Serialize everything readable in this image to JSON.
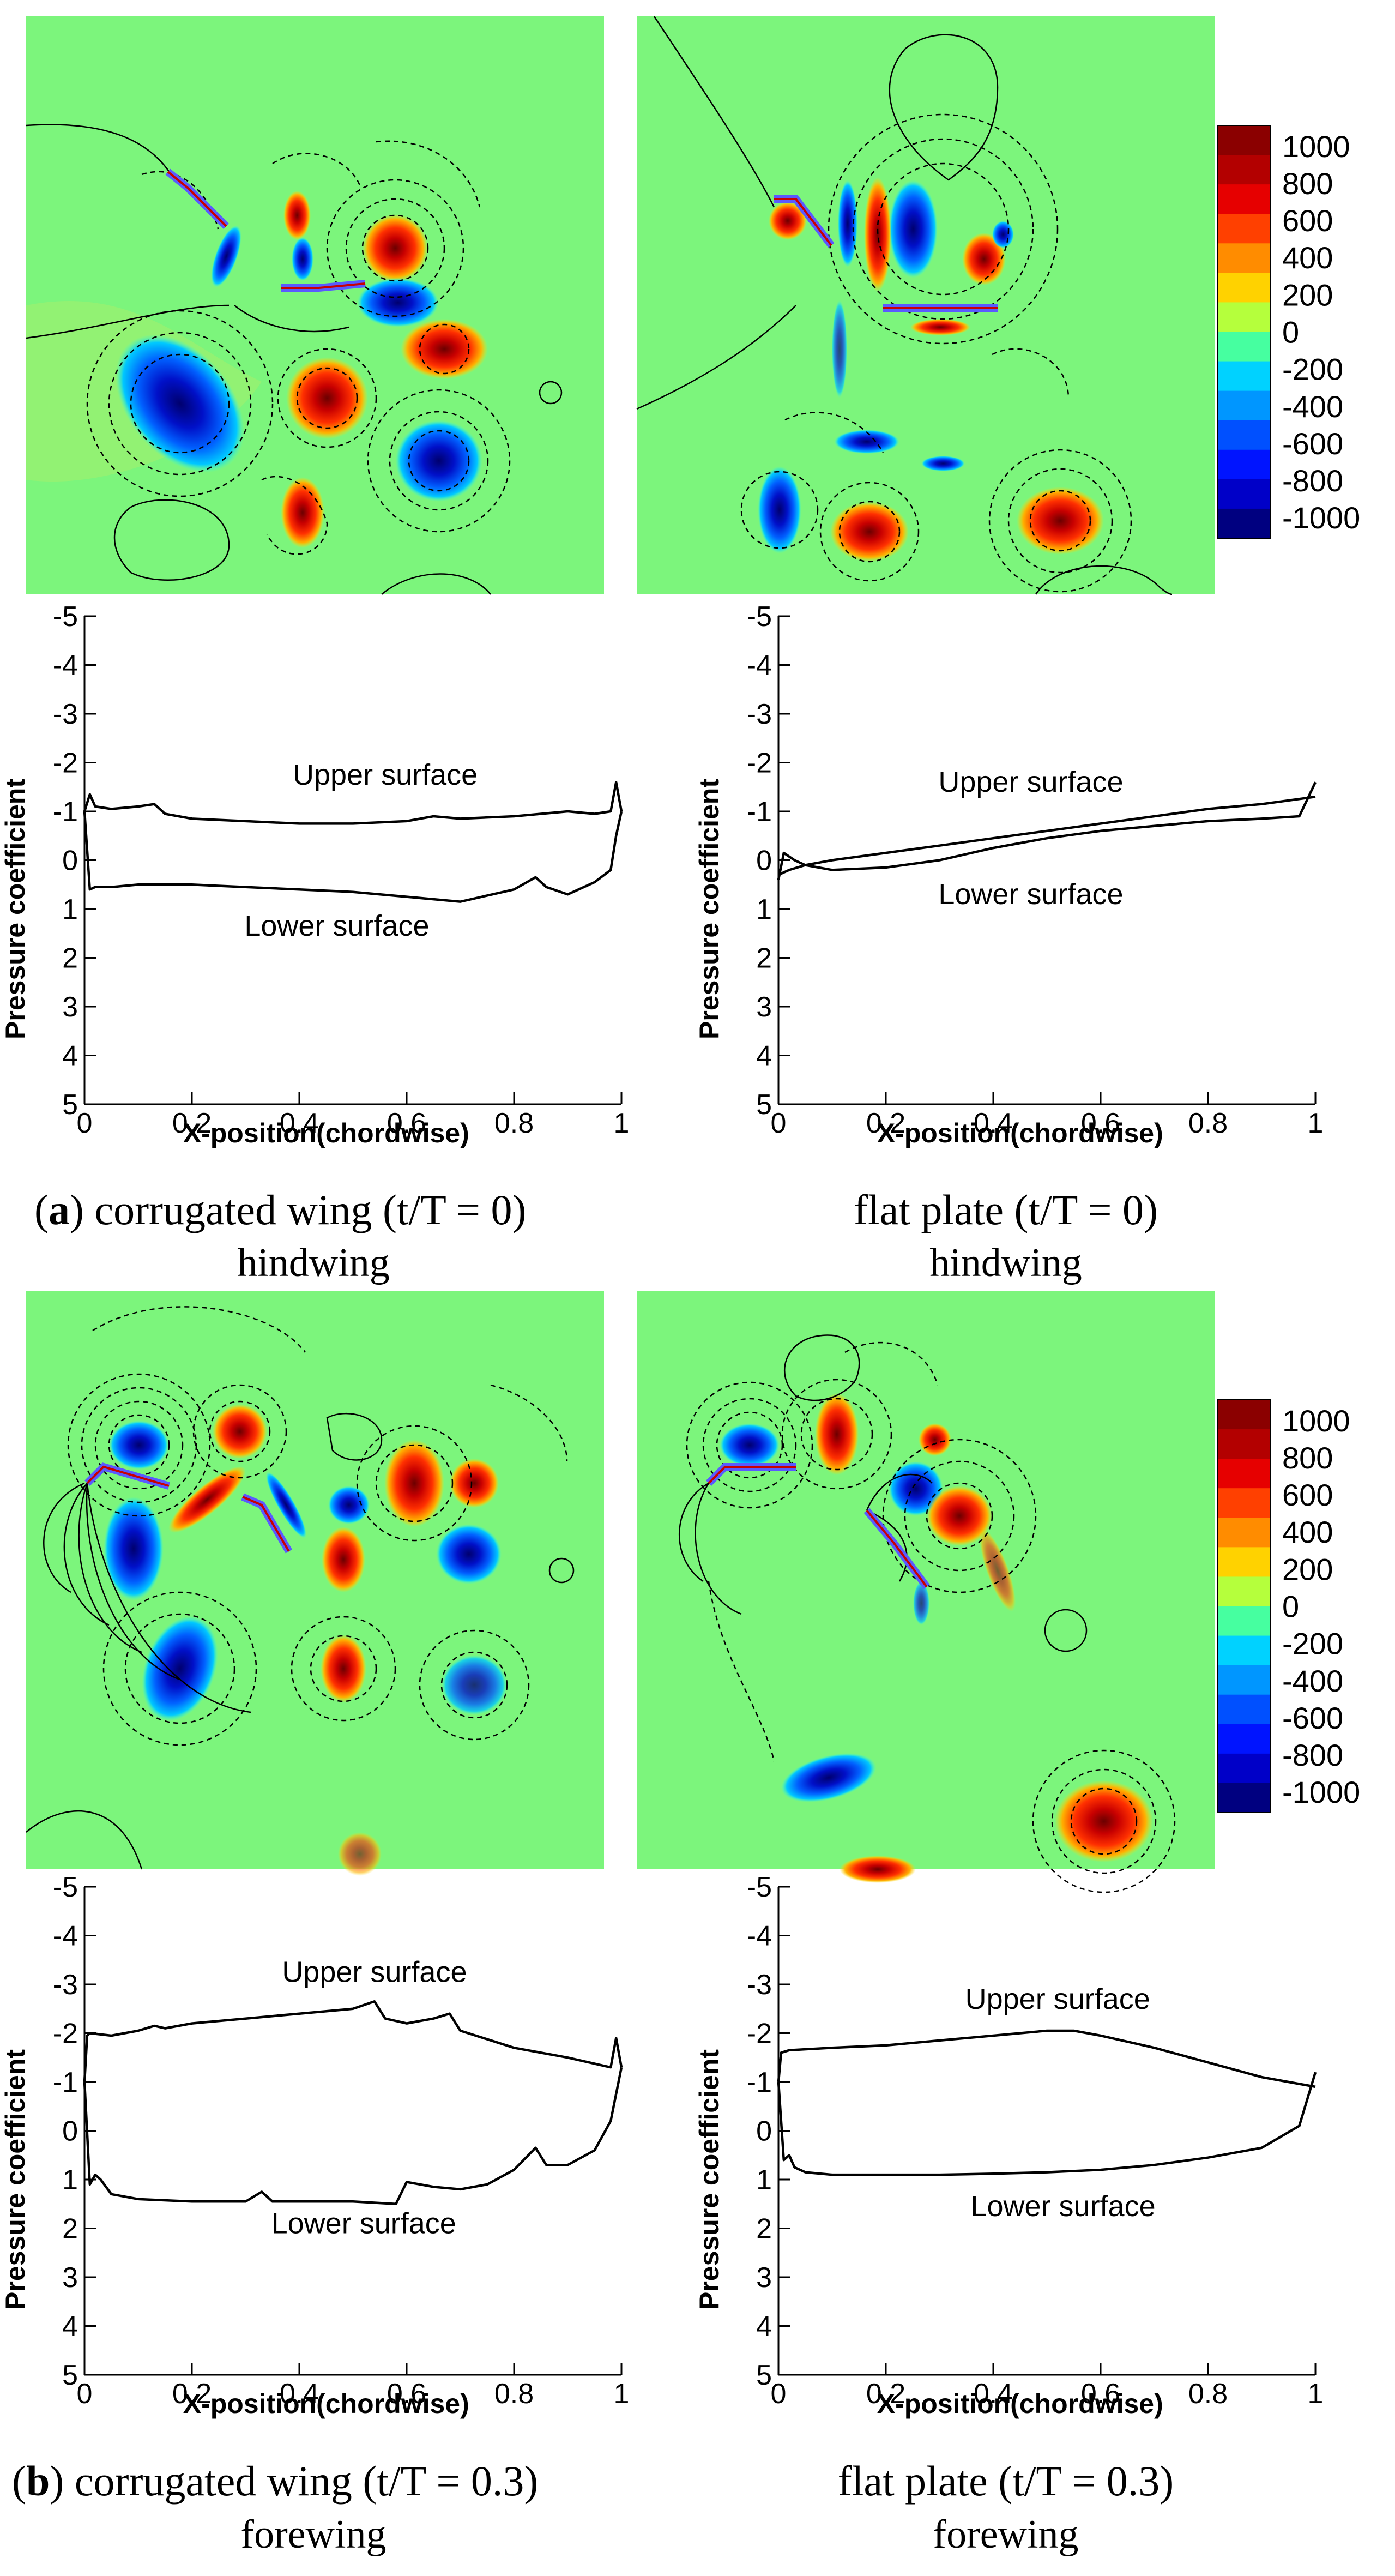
{
  "colorbar": {
    "labels": [
      "1000",
      "800",
      "600",
      "400",
      "200",
      "0",
      "-200",
      "-400",
      "-600",
      "-800",
      "-1000"
    ],
    "colors": [
      "#8b0000",
      "#b30000",
      "#e60000",
      "#ff4000",
      "#ff8c00",
      "#ffd200",
      "#b5ff3c",
      "#46ffa0",
      "#00d2ff",
      "#0096ff",
      "#0050ff",
      "#0014ff",
      "#0000c8",
      "#000080"
    ]
  },
  "field_colors": {
    "background": "#7cf57c",
    "positive": "#e60000",
    "negative": "#0014c8",
    "wing": "#5a5aff"
  },
  "chart_data": [
    {
      "type": "line",
      "panel": "a-left",
      "xlabel": "X-position(chordwise)",
      "ylabel": "Pressure coefficient",
      "xlim": [
        0,
        1
      ],
      "ylim": [
        5,
        -5
      ],
      "xticks": [
        "0",
        "0.2",
        "0.4",
        "0.6",
        "0.8",
        "1"
      ],
      "yticks": [
        "-5",
        "-4",
        "-3",
        "-2",
        "-1",
        "0",
        "1",
        "2",
        "3",
        "4",
        "5"
      ],
      "series": [
        {
          "name": "Upper surface",
          "x": [
            0,
            0.01,
            0.02,
            0.05,
            0.1,
            0.13,
            0.15,
            0.2,
            0.3,
            0.4,
            0.5,
            0.6,
            0.65,
            0.7,
            0.8,
            0.9,
            0.95,
            0.98,
            0.99,
            1.0
          ],
          "y": [
            -1.0,
            -1.35,
            -1.1,
            -1.05,
            -1.1,
            -1.15,
            -0.95,
            -0.85,
            -0.8,
            -0.75,
            -0.75,
            -0.8,
            -0.9,
            -0.85,
            -0.9,
            -1.0,
            -0.95,
            -1.0,
            -1.6,
            -1.0
          ]
        },
        {
          "name": "Lower surface",
          "x": [
            0,
            0.01,
            0.02,
            0.05,
            0.1,
            0.2,
            0.3,
            0.4,
            0.5,
            0.6,
            0.7,
            0.8,
            0.84,
            0.86,
            0.9,
            0.95,
            0.98,
            0.99,
            1.0
          ],
          "y": [
            -1.0,
            0.6,
            0.55,
            0.55,
            0.5,
            0.5,
            0.55,
            0.6,
            0.65,
            0.75,
            0.85,
            0.6,
            0.35,
            0.55,
            0.7,
            0.45,
            0.2,
            -0.5,
            -1.0
          ]
        }
      ],
      "annotations": [
        "Upper surface",
        "Lower surface"
      ]
    },
    {
      "type": "line",
      "panel": "a-right",
      "xlabel": "X-position(chordwise)",
      "ylabel": "Pressure coefficient",
      "xlim": [
        0,
        1
      ],
      "ylim": [
        5,
        -5
      ],
      "xticks": [
        "0",
        "0.2",
        "0.4",
        "0.6",
        "0.8",
        "1"
      ],
      "yticks": [
        "-5",
        "-4",
        "-3",
        "-2",
        "-1",
        "0",
        "1",
        "2",
        "3",
        "4",
        "5"
      ],
      "series": [
        {
          "name": "Upper surface",
          "x": [
            0,
            0.02,
            0.05,
            0.1,
            0.2,
            0.3,
            0.4,
            0.5,
            0.6,
            0.7,
            0.8,
            0.9,
            1.0
          ],
          "y": [
            0.3,
            0.2,
            0.1,
            0.0,
            -0.15,
            -0.3,
            -0.45,
            -0.6,
            -0.75,
            -0.9,
            -1.05,
            -1.15,
            -1.3
          ]
        },
        {
          "name": "Lower surface",
          "x": [
            0,
            0.01,
            0.03,
            0.05,
            0.1,
            0.2,
            0.3,
            0.4,
            0.5,
            0.6,
            0.7,
            0.8,
            0.9,
            0.97,
            1.0
          ],
          "y": [
            0.4,
            -0.15,
            0.0,
            0.1,
            0.2,
            0.15,
            0.0,
            -0.25,
            -0.45,
            -0.6,
            -0.7,
            -0.8,
            -0.85,
            -0.9,
            -1.6
          ]
        }
      ],
      "annotations": [
        "Upper surface",
        "Lower surface"
      ]
    },
    {
      "type": "line",
      "panel": "b-left",
      "xlabel": "X-position(chordwise)",
      "ylabel": "Pressure coefficient",
      "xlim": [
        0,
        1
      ],
      "ylim": [
        5,
        -5
      ],
      "xticks": [
        "0",
        "0.2",
        "0.4",
        "0.6",
        "0.8",
        "1"
      ],
      "yticks": [
        "-5",
        "-4",
        "-3",
        "-2",
        "-1",
        "0",
        "1",
        "2",
        "3",
        "4",
        "5"
      ],
      "series": [
        {
          "name": "Upper surface",
          "x": [
            0,
            0.005,
            0.01,
            0.05,
            0.1,
            0.13,
            0.15,
            0.2,
            0.3,
            0.4,
            0.5,
            0.54,
            0.56,
            0.6,
            0.65,
            0.68,
            0.7,
            0.8,
            0.9,
            0.98,
            0.99,
            1.0
          ],
          "y": [
            -1.0,
            -1.95,
            -2.0,
            -1.95,
            -2.05,
            -2.15,
            -2.1,
            -2.2,
            -2.3,
            -2.4,
            -2.5,
            -2.65,
            -2.3,
            -2.2,
            -2.3,
            -2.4,
            -2.05,
            -1.7,
            -1.5,
            -1.3,
            -1.9,
            -1.3
          ]
        },
        {
          "name": "Lower surface",
          "x": [
            0,
            0.01,
            0.02,
            0.03,
            0.05,
            0.1,
            0.2,
            0.3,
            0.33,
            0.35,
            0.4,
            0.5,
            0.58,
            0.6,
            0.65,
            0.7,
            0.75,
            0.8,
            0.84,
            0.86,
            0.9,
            0.95,
            0.98,
            1.0
          ],
          "y": [
            -1.0,
            1.1,
            0.9,
            1.0,
            1.3,
            1.4,
            1.45,
            1.45,
            1.25,
            1.45,
            1.45,
            1.45,
            1.5,
            1.05,
            1.15,
            1.2,
            1.1,
            0.8,
            0.35,
            0.7,
            0.7,
            0.4,
            -0.2,
            -1.3
          ]
        }
      ],
      "annotations": [
        "Upper surface",
        "Lower surface"
      ]
    },
    {
      "type": "line",
      "panel": "b-right",
      "xlabel": "X-position(chordwise)",
      "ylabel": "Pressure coefficient",
      "xlim": [
        0,
        1
      ],
      "ylim": [
        5,
        -5
      ],
      "xticks": [
        "0",
        "0.2",
        "0.4",
        "0.6",
        "0.8",
        "1"
      ],
      "yticks": [
        "-5",
        "-4",
        "-3",
        "-2",
        "-1",
        "0",
        "1",
        "2",
        "3",
        "4",
        "5"
      ],
      "series": [
        {
          "name": "Upper surface",
          "x": [
            0,
            0.005,
            0.02,
            0.1,
            0.2,
            0.3,
            0.4,
            0.5,
            0.55,
            0.6,
            0.7,
            0.8,
            0.9,
            1.0
          ],
          "y": [
            -1.0,
            -1.6,
            -1.65,
            -1.7,
            -1.75,
            -1.85,
            -1.95,
            -2.05,
            -2.05,
            -1.95,
            -1.7,
            -1.4,
            -1.1,
            -0.9
          ]
        },
        {
          "name": "Lower surface",
          "x": [
            0,
            0.01,
            0.02,
            0.03,
            0.05,
            0.1,
            0.2,
            0.3,
            0.4,
            0.5,
            0.6,
            0.7,
            0.8,
            0.9,
            0.97,
            1.0
          ],
          "y": [
            -1.0,
            0.6,
            0.5,
            0.75,
            0.85,
            0.9,
            0.9,
            0.9,
            0.88,
            0.85,
            0.8,
            0.7,
            0.55,
            0.35,
            -0.1,
            -1.2
          ]
        }
      ],
      "annotations": [
        "Upper surface",
        "Lower surface"
      ]
    }
  ],
  "captions": {
    "a_left_label": "a",
    "a_left_text": ") corrugated wing (t/T = 0)",
    "a_left_sub": "hindwing",
    "a_right_text": "flat plate (t/T = 0)",
    "a_right_sub": "hindwing",
    "b_left_label": "b",
    "b_left_text": ") corrugated wing (t/T = 0.3)",
    "b_left_sub": "forewing",
    "b_right_text": "flat plate (t/T = 0.3)",
    "b_right_sub": "forewing"
  }
}
